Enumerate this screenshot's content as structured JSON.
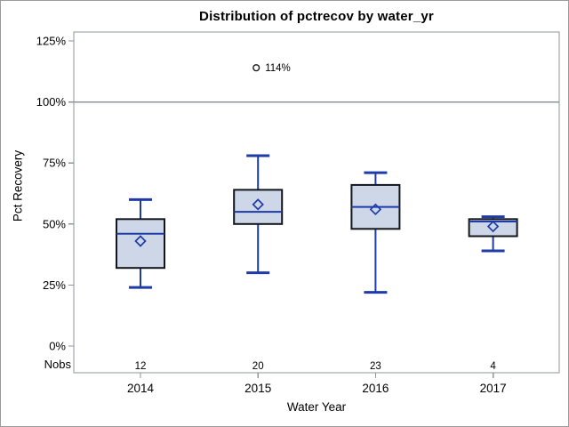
{
  "window": {
    "background": "#ffffff",
    "border_color": "#9b9b9b"
  },
  "chart_data": {
    "type": "boxplot",
    "title": "Distribution of pctrecov by water_yr",
    "xlabel": "Water Year",
    "ylabel": "Pct Recovery",
    "nobs_label": "Nobs",
    "categories": [
      "2014",
      "2015",
      "2016",
      "2017"
    ],
    "yticks": [
      {
        "value": 0,
        "label": "0%"
      },
      {
        "value": 25,
        "label": "25%"
      },
      {
        "value": 50,
        "label": "50%"
      },
      {
        "value": 75,
        "label": "75%"
      },
      {
        "value": 100,
        "label": "100%"
      },
      {
        "value": 125,
        "label": "125%"
      }
    ],
    "ylim": [
      -11,
      129
    ],
    "reference_line": 100,
    "grid": false,
    "legend": false,
    "series": [
      {
        "category": "2014",
        "nobs": 12,
        "min": 24,
        "q1": 32,
        "median": 46,
        "q3": 52,
        "max": 60,
        "mean": 43,
        "outliers": []
      },
      {
        "category": "2015",
        "nobs": 20,
        "min": 30,
        "q1": 50,
        "median": 55,
        "q3": 64,
        "max": 78,
        "mean": 58,
        "outliers": [
          {
            "value": 114,
            "label": "114%"
          }
        ]
      },
      {
        "category": "2016",
        "nobs": 23,
        "min": 22,
        "q1": 48,
        "median": 57,
        "q3": 66,
        "max": 71,
        "mean": 56,
        "outliers": []
      },
      {
        "category": "2017",
        "nobs": 4,
        "min": 39,
        "q1": 45,
        "median": 51,
        "q3": 52,
        "max": 53,
        "mean": 49,
        "outliers": []
      }
    ],
    "colors": {
      "box_fill": "#cdd7e8",
      "box_border": "#12161b",
      "line_blue": "#1e3ba6",
      "axis_gray": "#8e959b",
      "text": "#000000"
    }
  }
}
